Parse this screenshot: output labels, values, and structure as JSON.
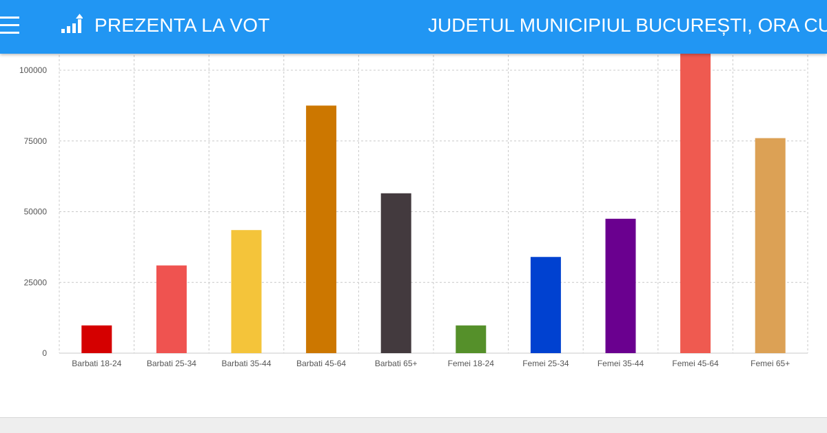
{
  "header": {
    "app_title": "PREZENTA LA VOT",
    "page_heading": "JUDETUL MUNICIPIUL BUCUREȘTI, ORA CURENTĂ",
    "menu_icon": "hamburger-menu-icon",
    "logo_icon": "bar-chart-icon",
    "background_color": "#2196f3"
  },
  "chart_data": {
    "type": "bar",
    "title": "",
    "xlabel": "",
    "ylabel": "",
    "ylim": [
      0,
      105000
    ],
    "yticks": [
      0,
      25000,
      50000,
      75000,
      100000
    ],
    "ytick_labels": [
      "0",
      "25000",
      "50000",
      "75000",
      "100000"
    ],
    "grid": true,
    "categories": [
      "Barbati 18-24",
      "Barbati 25-34",
      "Barbati 35-44",
      "Barbati 45-64",
      "Barbati 65+",
      "Femei 18-24",
      "Femei 25-34",
      "Femei 35-44",
      "Femei 45-64",
      "Femei 65+"
    ],
    "values": [
      9800,
      31000,
      43500,
      87500,
      56500,
      9800,
      34000,
      47500,
      106500,
      76000
    ],
    "colors": [
      "#d50000",
      "#ef5350",
      "#f4c43a",
      "#cc7700",
      "#433a3e",
      "#55902a",
      "#0041d0",
      "#6a008f",
      "#ef5a50",
      "#dca155"
    ]
  }
}
